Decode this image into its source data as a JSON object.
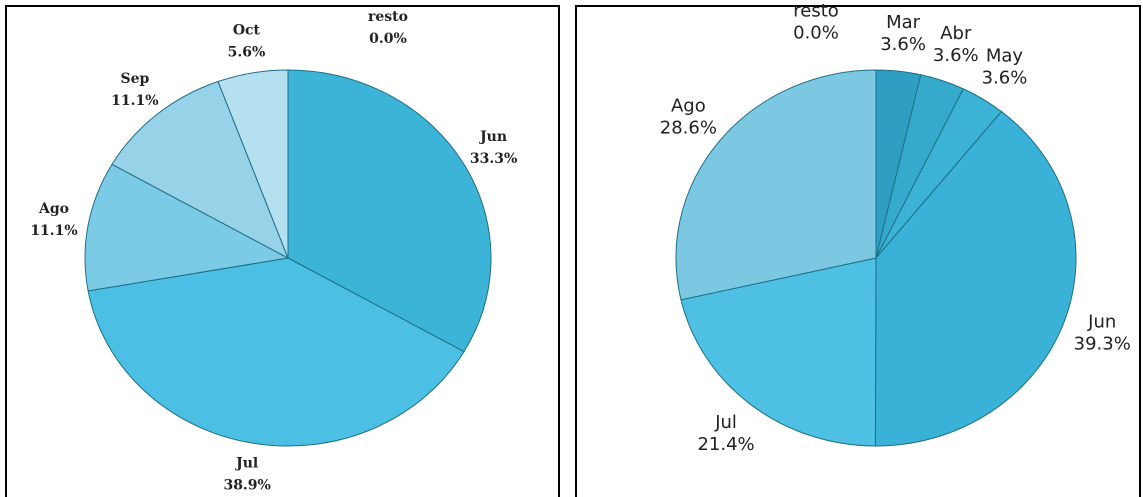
{
  "chart_data": [
    {
      "type": "pie",
      "categories": [
        "Jun",
        "Jul",
        "Ago",
        "Sep",
        "Oct",
        "resto"
      ],
      "values": [
        33.3,
        38.9,
        11.1,
        11.1,
        5.6,
        0.0
      ],
      "value_labels": [
        "33.3%",
        "38.9%",
        "11.1%",
        "11.1%",
        "5.6%",
        "0.0%"
      ],
      "colors": [
        "#3bb4d8",
        "#4cc0e4",
        "#7ccbe6",
        "#96d2e8",
        "#b5e0ef",
        "#2a9cc0"
      ]
    },
    {
      "type": "pie",
      "categories": [
        "Mar",
        "Abr",
        "May",
        "Jun",
        "Jul",
        "Ago",
        "resto"
      ],
      "values": [
        3.6,
        3.6,
        3.6,
        39.3,
        21.4,
        28.6,
        0.0
      ],
      "value_labels": [
        "3.6%",
        "3.6%",
        "3.6%",
        "39.3%",
        "21.4%",
        "28.6%",
        "0.0%"
      ],
      "colors": [
        "#2e9fc2",
        "#35aacd",
        "#3cb3d6",
        "#3ab2d7",
        "#4dc0e3",
        "#7cc8e2",
        "#2a9cc0"
      ]
    }
  ]
}
